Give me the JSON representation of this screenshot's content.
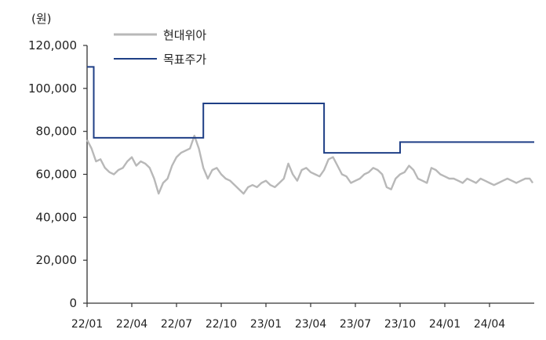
{
  "chart_data": {
    "type": "line",
    "y_unit_label": "(원)",
    "ylim": [
      0,
      120000
    ],
    "y_ticks": [
      "0",
      "20,000",
      "40,000",
      "60,000",
      "80,000",
      "100,000",
      "120,000"
    ],
    "y_tick_values": [
      0,
      20000,
      40000,
      60000,
      80000,
      100000,
      120000
    ],
    "x_ticks": [
      "22/01",
      "22/04",
      "22/07",
      "22/10",
      "23/01",
      "23/04",
      "23/07",
      "23/10",
      "24/01",
      "24/04"
    ],
    "x_range_months": [
      0,
      30
    ],
    "grid": false,
    "legend_placement": "top-left",
    "series": [
      {
        "name": "현대위아",
        "color": "#b8b8b8",
        "x": [
          0.0,
          0.3,
          0.6,
          0.9,
          1.2,
          1.5,
          1.8,
          2.1,
          2.4,
          2.7,
          3.0,
          3.3,
          3.6,
          3.9,
          4.2,
          4.5,
          4.8,
          5.1,
          5.4,
          5.7,
          6.0,
          6.3,
          6.6,
          6.9,
          7.2,
          7.5,
          7.8,
          8.1,
          8.4,
          8.7,
          9.0,
          9.3,
          9.6,
          9.9,
          10.2,
          10.5,
          10.8,
          11.1,
          11.4,
          11.7,
          12.0,
          12.3,
          12.6,
          12.9,
          13.2,
          13.5,
          13.8,
          14.1,
          14.4,
          14.7,
          15.0,
          15.3,
          15.6,
          15.9,
          16.2,
          16.5,
          16.8,
          17.1,
          17.4,
          17.7,
          18.0,
          18.3,
          18.6,
          18.9,
          19.2,
          19.5,
          19.8,
          20.1,
          20.4,
          20.7,
          21.0,
          21.3,
          21.6,
          21.9,
          22.2,
          22.5,
          22.8,
          23.1,
          23.4,
          23.7,
          24.0,
          24.3,
          24.6,
          24.9,
          25.2,
          25.5,
          25.8,
          26.1,
          26.4,
          26.7,
          27.0,
          27.3,
          27.6,
          27.9,
          28.2,
          28.5,
          28.8,
          29.1,
          29.4,
          29.7,
          29.9
        ],
        "values": [
          76000,
          72000,
          66000,
          67000,
          63000,
          61000,
          60000,
          62000,
          63000,
          66000,
          68000,
          64000,
          66000,
          65000,
          63000,
          58000,
          51000,
          56000,
          58000,
          64000,
          68000,
          70000,
          71000,
          72000,
          78000,
          72000,
          63000,
          58000,
          62000,
          63000,
          60000,
          58000,
          57000,
          55000,
          53000,
          51000,
          54000,
          55000,
          54000,
          56000,
          57000,
          55000,
          54000,
          56000,
          58000,
          65000,
          60000,
          57000,
          62000,
          63000,
          61000,
          60000,
          59000,
          62000,
          67000,
          68000,
          64000,
          60000,
          59000,
          56000,
          57000,
          58000,
          60000,
          61000,
          63000,
          62000,
          60000,
          54000,
          53000,
          58000,
          60000,
          61000,
          64000,
          62000,
          58000,
          57000,
          56000,
          63000,
          62000,
          60000,
          59000,
          58000,
          58000,
          57000,
          56000,
          58000,
          57000,
          56000,
          58000,
          57000,
          56000,
          55000,
          56000,
          57000,
          58000,
          57000,
          56000,
          57000,
          58000,
          58000,
          56000
        ]
      },
      {
        "name": "목표주가",
        "color": "#1f3f86",
        "x": [
          0.0,
          0.45,
          0.45,
          7.8,
          7.8,
          15.9,
          15.9,
          21.0,
          21.0,
          30.0
        ],
        "values": [
          110000,
          110000,
          77000,
          77000,
          93000,
          93000,
          70000,
          70000,
          75000,
          75000
        ]
      }
    ]
  }
}
